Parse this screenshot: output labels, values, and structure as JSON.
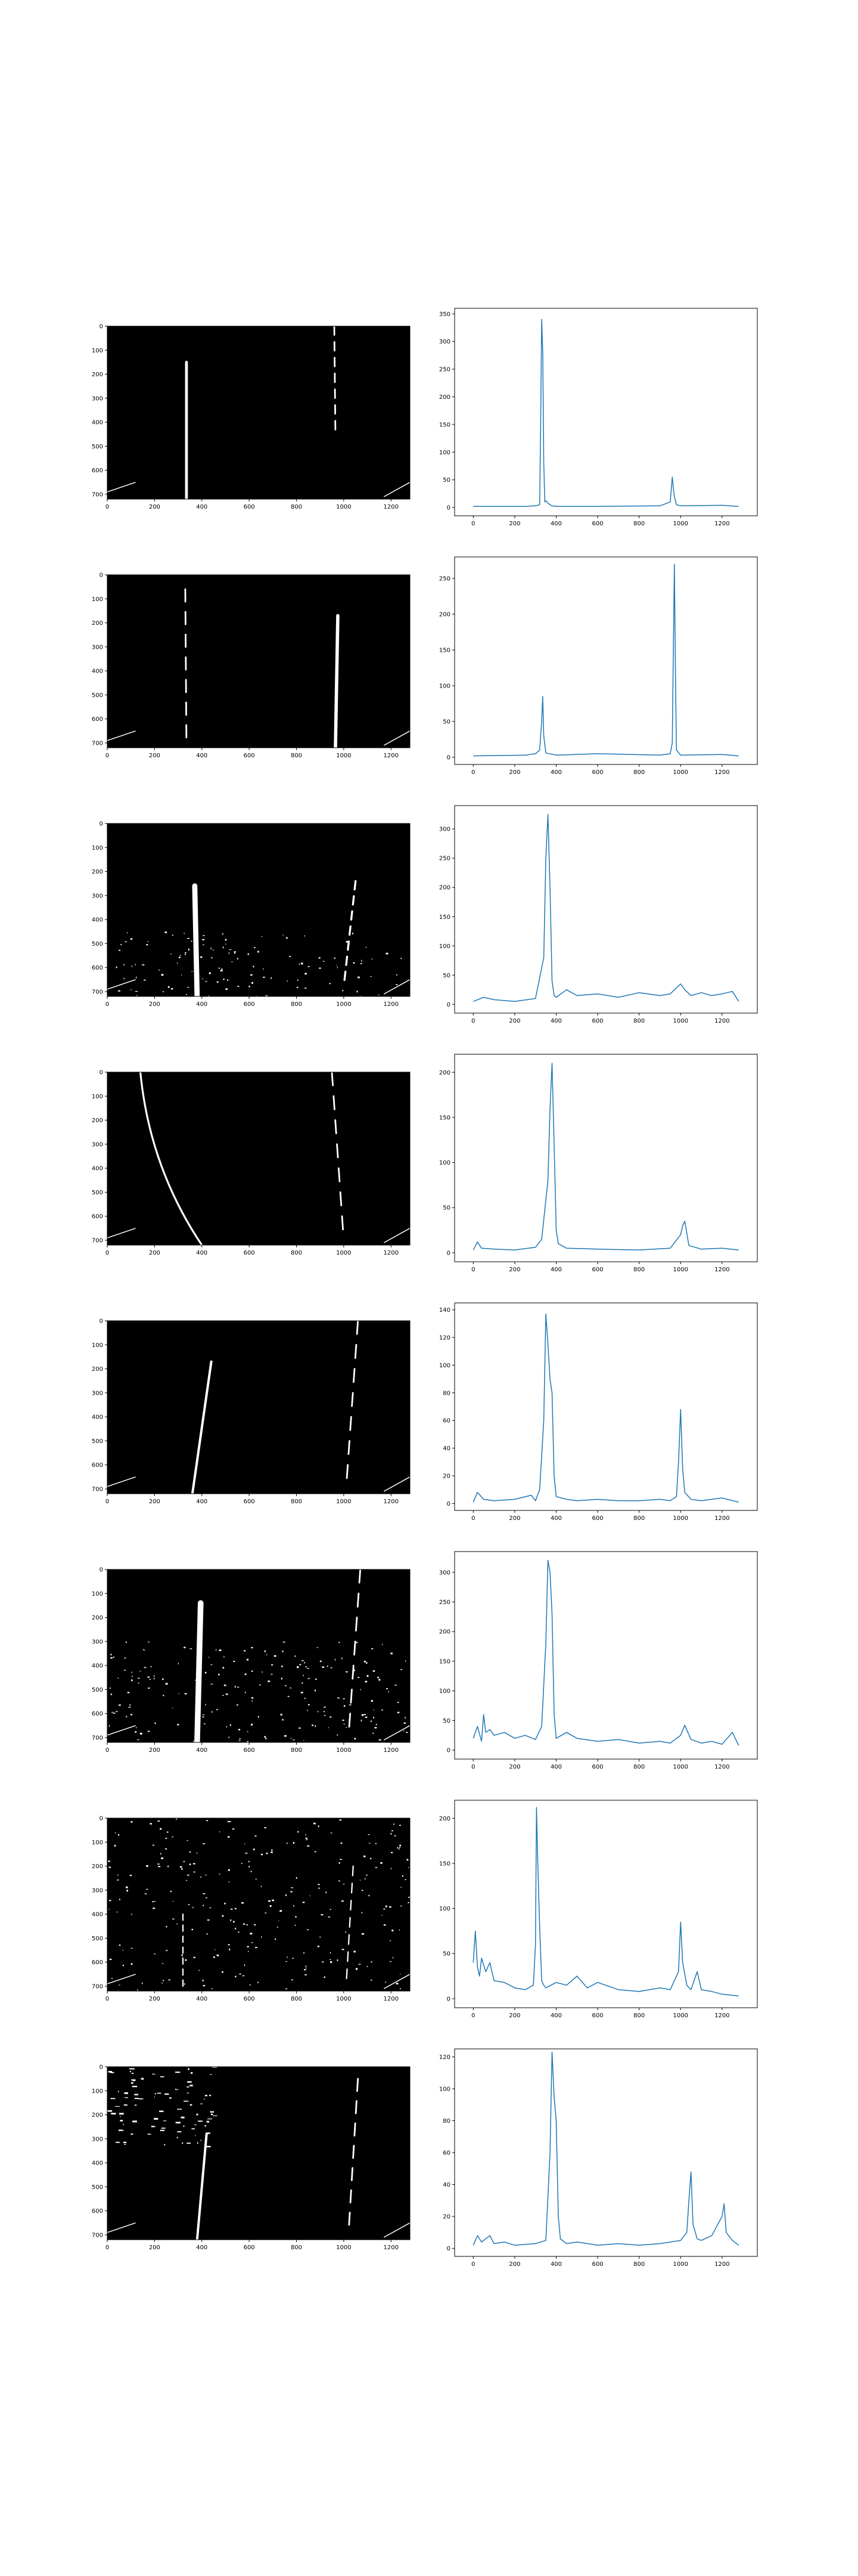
{
  "colors": {
    "background": "#ffffff",
    "line": "#1f77b4",
    "image_bg": "#000000",
    "image_fg": "#ffffff",
    "axis": "#000000"
  },
  "chart_data": [
    {
      "type": "image",
      "description_kind": "binary thresholded lane image",
      "xlim": [
        0,
        1280
      ],
      "ylim": [
        720,
        0
      ],
      "xticks": [
        "0",
        "200",
        "400",
        "600",
        "800",
        "1000",
        "1200"
      ],
      "yticks": [
        "0",
        "100",
        "200",
        "300",
        "400",
        "500",
        "600",
        "700"
      ],
      "features": [
        {
          "shape": "lane",
          "x_top": 335,
          "x_bottom": 335,
          "y_top": 150,
          "y_bottom": 720,
          "width": 12
        },
        {
          "shape": "dashes",
          "x_top": 960,
          "x_bottom": 965,
          "y_top": 0,
          "y_bottom": 460,
          "width": 10
        },
        {
          "shape": "edge",
          "side": "both"
        }
      ]
    },
    {
      "type": "line",
      "title": "",
      "xlabel": "",
      "ylabel": "",
      "xlim": [
        -90,
        1370
      ],
      "ylim": [
        -15,
        360
      ],
      "xticks": [
        "0",
        "200",
        "400",
        "600",
        "800",
        "1000",
        "1200"
      ],
      "yticks": [
        "0",
        "50",
        "100",
        "150",
        "200",
        "250",
        "300",
        "350"
      ],
      "x": [
        0,
        250,
        300,
        320,
        325,
        330,
        335,
        340,
        345,
        350,
        360,
        370,
        380,
        400,
        600,
        900,
        950,
        960,
        965,
        970,
        980,
        1000,
        1200,
        1280
      ],
      "y": [
        2,
        2,
        3,
        5,
        150,
        340,
        280,
        80,
        10,
        12,
        8,
        5,
        3,
        2,
        2,
        3,
        10,
        55,
        35,
        20,
        5,
        3,
        4,
        2
      ]
    },
    {
      "type": "image",
      "description_kind": "binary thresholded lane image",
      "xlim": [
        0,
        1280
      ],
      "ylim": [
        720,
        0
      ],
      "xticks": [
        "0",
        "200",
        "400",
        "600",
        "800",
        "1000",
        "1200"
      ],
      "yticks": [
        "0",
        "100",
        "200",
        "300",
        "400",
        "500",
        "600",
        "700"
      ],
      "features": [
        {
          "shape": "dashes",
          "x_top": 330,
          "x_bottom": 335,
          "y_top": 60,
          "y_bottom": 720,
          "width": 10
        },
        {
          "shape": "lane",
          "x_top": 975,
          "x_bottom": 965,
          "y_top": 170,
          "y_bottom": 720,
          "width": 14
        },
        {
          "shape": "edge",
          "side": "both"
        }
      ]
    },
    {
      "type": "line",
      "title": "",
      "xlabel": "",
      "ylabel": "",
      "xlim": [
        -90,
        1370
      ],
      "ylim": [
        -10,
        280
      ],
      "xticks": [
        "0",
        "200",
        "400",
        "600",
        "800",
        "1000",
        "1200"
      ],
      "yticks": [
        "0",
        "50",
        "100",
        "150",
        "200",
        "250"
      ],
      "x": [
        0,
        250,
        300,
        320,
        330,
        335,
        340,
        350,
        400,
        600,
        900,
        950,
        960,
        965,
        970,
        975,
        980,
        1000,
        1200,
        1280
      ],
      "y": [
        2,
        3,
        5,
        10,
        50,
        85,
        30,
        6,
        3,
        5,
        3,
        5,
        20,
        150,
        270,
        120,
        10,
        3,
        4,
        2
      ]
    },
    {
      "type": "image",
      "description_kind": "binary thresholded lane image",
      "xlim": [
        0,
        1280
      ],
      "ylim": [
        720,
        0
      ],
      "xticks": [
        "0",
        "200",
        "400",
        "600",
        "800",
        "1000",
        "1200"
      ],
      "yticks": [
        "0",
        "100",
        "200",
        "300",
        "400",
        "500",
        "600",
        "700"
      ],
      "features": [
        {
          "shape": "lane",
          "x_top": 370,
          "x_bottom": 380,
          "y_top": 260,
          "y_bottom": 720,
          "width": 22
        },
        {
          "shape": "dashes",
          "x_top": 1050,
          "x_bottom": 1000,
          "y_top": 240,
          "y_bottom": 680,
          "width": 12
        },
        {
          "shape": "noise",
          "density": "medium",
          "y_from": 450,
          "y_to": 720
        },
        {
          "shape": "edge",
          "side": "both"
        }
      ]
    },
    {
      "type": "line",
      "title": "",
      "xlabel": "",
      "ylabel": "",
      "xlim": [
        -90,
        1370
      ],
      "ylim": [
        -15,
        340
      ],
      "xticks": [
        "0",
        "200",
        "400",
        "600",
        "800",
        "1000",
        "1200"
      ],
      "yticks": [
        "0",
        "50",
        "100",
        "150",
        "200",
        "250",
        "300"
      ],
      "x": [
        0,
        50,
        100,
        200,
        300,
        340,
        350,
        360,
        370,
        380,
        390,
        400,
        450,
        500,
        600,
        700,
        800,
        900,
        950,
        1000,
        1020,
        1050,
        1100,
        1150,
        1200,
        1250,
        1280
      ],
      "y": [
        5,
        12,
        8,
        5,
        10,
        80,
        250,
        325,
        200,
        40,
        15,
        12,
        25,
        15,
        18,
        12,
        20,
        15,
        18,
        35,
        25,
        15,
        20,
        15,
        18,
        22,
        5
      ]
    },
    {
      "type": "image",
      "description_kind": "binary thresholded lane image",
      "xlim": [
        0,
        1280
      ],
      "ylim": [
        720,
        0
      ],
      "xticks": [
        "0",
        "200",
        "400",
        "600",
        "800",
        "1000",
        "1200"
      ],
      "yticks": [
        "0",
        "100",
        "200",
        "300",
        "400",
        "500",
        "600",
        "700"
      ],
      "features": [
        {
          "shape": "curve-lane",
          "x_top": 140,
          "x_bottom": 400,
          "y_top": 0,
          "y_bottom": 720,
          "width": 8
        },
        {
          "shape": "dashes",
          "x_top": 950,
          "x_bottom": 1000,
          "y_top": 0,
          "y_bottom": 700,
          "width": 10
        },
        {
          "shape": "edge",
          "side": "both"
        }
      ]
    },
    {
      "type": "line",
      "title": "",
      "xlabel": "",
      "ylabel": "",
      "xlim": [
        -90,
        1370
      ],
      "ylim": [
        -10,
        220
      ],
      "xticks": [
        "0",
        "200",
        "400",
        "600",
        "800",
        "1000",
        "1200"
      ],
      "yticks": [
        "0",
        "50",
        "100",
        "150",
        "200"
      ],
      "x": [
        0,
        20,
        40,
        100,
        200,
        300,
        330,
        360,
        370,
        380,
        390,
        400,
        410,
        450,
        600,
        800,
        950,
        1000,
        1010,
        1020,
        1040,
        1100,
        1200,
        1280
      ],
      "y": [
        3,
        12,
        5,
        4,
        3,
        6,
        15,
        80,
        160,
        210,
        120,
        25,
        10,
        5,
        4,
        3,
        5,
        20,
        30,
        35,
        8,
        4,
        5,
        3
      ]
    },
    {
      "type": "image",
      "description_kind": "binary thresholded lane image",
      "xlim": [
        0,
        1280
      ],
      "ylim": [
        720,
        0
      ],
      "xticks": [
        "0",
        "200",
        "400",
        "600",
        "800",
        "1000",
        "1200"
      ],
      "yticks": [
        "0",
        "100",
        "200",
        "300",
        "400",
        "500",
        "600",
        "700"
      ],
      "features": [
        {
          "shape": "lane",
          "x_top": 440,
          "x_bottom": 360,
          "y_top": 170,
          "y_bottom": 720,
          "width": 10
        },
        {
          "shape": "dashes",
          "x_top": 1060,
          "x_bottom": 1010,
          "y_top": 0,
          "y_bottom": 700,
          "width": 10
        },
        {
          "shape": "edge",
          "side": "both"
        }
      ]
    },
    {
      "type": "line",
      "title": "",
      "xlabel": "",
      "ylabel": "",
      "xlim": [
        -90,
        1370
      ],
      "ylim": [
        -5,
        145
      ],
      "xticks": [
        "0",
        "200",
        "400",
        "600",
        "800",
        "1000",
        "1200"
      ],
      "yticks": [
        "0",
        "20",
        "40",
        "60",
        "80",
        "100",
        "120",
        "140"
      ],
      "x": [
        0,
        20,
        50,
        100,
        200,
        280,
        300,
        320,
        340,
        350,
        360,
        370,
        380,
        390,
        400,
        450,
        500,
        600,
        700,
        800,
        900,
        950,
        980,
        990,
        1000,
        1010,
        1020,
        1050,
        1100,
        1150,
        1200,
        1280
      ],
      "y": [
        1,
        8,
        3,
        2,
        3,
        6,
        2,
        10,
        60,
        137,
        115,
        90,
        80,
        20,
        5,
        3,
        2,
        3,
        2,
        2,
        3,
        2,
        5,
        30,
        68,
        25,
        8,
        3,
        2,
        3,
        4,
        1
      ]
    },
    {
      "type": "image",
      "description_kind": "binary thresholded lane image",
      "xlim": [
        0,
        1280
      ],
      "ylim": [
        720,
        0
      ],
      "xticks": [
        "0",
        "200",
        "400",
        "600",
        "800",
        "1000",
        "1200"
      ],
      "yticks": [
        "0",
        "100",
        "200",
        "300",
        "400",
        "500",
        "600",
        "700"
      ],
      "features": [
        {
          "shape": "lane",
          "x_top": 395,
          "x_bottom": 380,
          "y_top": 140,
          "y_bottom": 720,
          "width": 24
        },
        {
          "shape": "dashes",
          "x_top": 1070,
          "x_bottom": 1020,
          "y_top": 0,
          "y_bottom": 700,
          "width": 10
        },
        {
          "shape": "noise",
          "density": "high",
          "y_from": 300,
          "y_to": 720
        },
        {
          "shape": "edge",
          "side": "both"
        }
      ]
    },
    {
      "type": "line",
      "title": "",
      "xlabel": "",
      "ylabel": "",
      "xlim": [
        -90,
        1370
      ],
      "ylim": [
        -15,
        335
      ],
      "xticks": [
        "0",
        "200",
        "400",
        "600",
        "800",
        "1000",
        "1200"
      ],
      "yticks": [
        "0",
        "50",
        "100",
        "150",
        "200",
        "250",
        "300"
      ],
      "x": [
        0,
        20,
        40,
        50,
        60,
        80,
        100,
        150,
        200,
        250,
        300,
        330,
        350,
        360,
        370,
        380,
        390,
        400,
        450,
        500,
        600,
        700,
        800,
        900,
        950,
        1000,
        1020,
        1050,
        1100,
        1150,
        1200,
        1250,
        1280
      ],
      "y": [
        20,
        40,
        15,
        60,
        30,
        35,
        25,
        30,
        20,
        25,
        18,
        40,
        180,
        320,
        300,
        230,
        60,
        20,
        30,
        20,
        15,
        18,
        12,
        15,
        12,
        25,
        42,
        18,
        12,
        15,
        10,
        30,
        8
      ]
    },
    {
      "type": "image",
      "description_kind": "binary thresholded lane image",
      "xlim": [
        0,
        1280
      ],
      "ylim": [
        720,
        0
      ],
      "xticks": [
        "0",
        "200",
        "400",
        "600",
        "800",
        "1000",
        "1200"
      ],
      "yticks": [
        "0",
        "100",
        "200",
        "300",
        "400",
        "500",
        "600",
        "700"
      ],
      "features": [
        {
          "shape": "dashes",
          "x_top": 320,
          "x_bottom": 320,
          "y_top": 400,
          "y_bottom": 720,
          "width": 8
        },
        {
          "shape": "dashes",
          "x_top": 1040,
          "x_bottom": 1010,
          "y_top": 200,
          "y_bottom": 700,
          "width": 8
        },
        {
          "shape": "noise",
          "density": "heavy",
          "y_from": 0,
          "y_to": 720
        },
        {
          "shape": "edge",
          "side": "both"
        }
      ]
    },
    {
      "type": "line",
      "title": "",
      "xlabel": "",
      "ylabel": "",
      "xlim": [
        -90,
        1370
      ],
      "ylim": [
        -10,
        220
      ],
      "xticks": [
        "0",
        "200",
        "400",
        "600",
        "800",
        "1000",
        "1200"
      ],
      "yticks": [
        "0",
        "50",
        "100",
        "150",
        "200"
      ],
      "x": [
        0,
        10,
        20,
        30,
        40,
        60,
        80,
        100,
        150,
        200,
        250,
        290,
        300,
        305,
        310,
        320,
        330,
        340,
        350,
        400,
        450,
        500,
        550,
        600,
        700,
        800,
        900,
        950,
        990,
        1000,
        1010,
        1030,
        1050,
        1080,
        1100,
        1150,
        1200,
        1280
      ],
      "y": [
        40,
        75,
        35,
        25,
        45,
        30,
        40,
        20,
        18,
        12,
        10,
        15,
        60,
        212,
        160,
        80,
        20,
        15,
        12,
        18,
        15,
        25,
        12,
        18,
        10,
        8,
        12,
        10,
        30,
        85,
        40,
        15,
        10,
        30,
        10,
        8,
        5,
        3
      ]
    },
    {
      "type": "image",
      "description_kind": "binary thresholded lane image",
      "xlim": [
        0,
        1280
      ],
      "ylim": [
        720,
        0
      ],
      "xticks": [
        "0",
        "200",
        "400",
        "600",
        "800",
        "1000",
        "1200"
      ],
      "yticks": [
        "0",
        "100",
        "200",
        "300",
        "400",
        "500",
        "600",
        "700"
      ],
      "features": [
        {
          "shape": "lane",
          "x_top": 420,
          "x_bottom": 380,
          "y_top": 280,
          "y_bottom": 720,
          "width": 10
        },
        {
          "shape": "dashes",
          "x_top": 1060,
          "x_bottom": 1020,
          "y_top": 50,
          "y_bottom": 700,
          "width": 10
        },
        {
          "shape": "streaks",
          "region": "left-top"
        },
        {
          "shape": "edge",
          "side": "both"
        }
      ]
    },
    {
      "type": "line",
      "title": "",
      "xlabel": "",
      "ylabel": "",
      "xlim": [
        -90,
        1370
      ],
      "ylim": [
        -5,
        125
      ],
      "xticks": [
        "0",
        "200",
        "400",
        "600",
        "800",
        "1000",
        "1200"
      ],
      "yticks": [
        "0",
        "20",
        "40",
        "60",
        "80",
        "100",
        "120"
      ],
      "x": [
        0,
        20,
        40,
        80,
        100,
        150,
        200,
        300,
        350,
        370,
        380,
        390,
        400,
        410,
        420,
        450,
        500,
        600,
        700,
        800,
        900,
        1000,
        1030,
        1040,
        1050,
        1060,
        1080,
        1100,
        1150,
        1200,
        1210,
        1220,
        1250,
        1280
      ],
      "y": [
        2,
        8,
        4,
        8,
        3,
        4,
        2,
        3,
        5,
        60,
        123,
        95,
        80,
        20,
        6,
        3,
        4,
        2,
        3,
        2,
        3,
        5,
        10,
        30,
        48,
        15,
        6,
        5,
        8,
        20,
        28,
        10,
        5,
        2
      ]
    }
  ]
}
